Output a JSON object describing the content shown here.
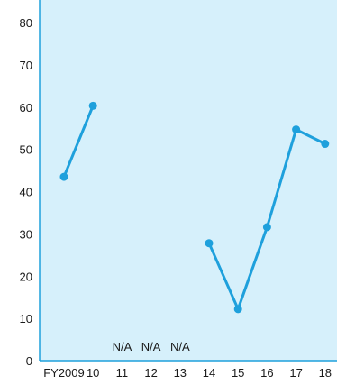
{
  "chart_data": {
    "type": "line",
    "title": "",
    "xlabel": "",
    "ylabel": "",
    "categories": [
      "FY2009",
      "10",
      "11",
      "12",
      "13",
      "14",
      "15",
      "16",
      "17",
      "18"
    ],
    "series": [
      {
        "values": [
          43.5,
          60.3,
          null,
          null,
          null,
          27.8,
          12.2,
          31.6,
          54.7,
          51.3
        ]
      }
    ],
    "na_labels": [
      {
        "category": "11",
        "text": "N/A"
      },
      {
        "category": "12",
        "text": "N/A"
      },
      {
        "category": "13",
        "text": "N/A"
      }
    ],
    "ylim": [
      0,
      80
    ],
    "yticks": [
      0,
      10,
      20,
      30,
      40,
      50,
      60,
      70,
      80
    ],
    "grid": false,
    "colors": {
      "plot_background": "#d6f0fb",
      "line": "#1ea0dc",
      "axis": "#1ea0dc"
    }
  }
}
